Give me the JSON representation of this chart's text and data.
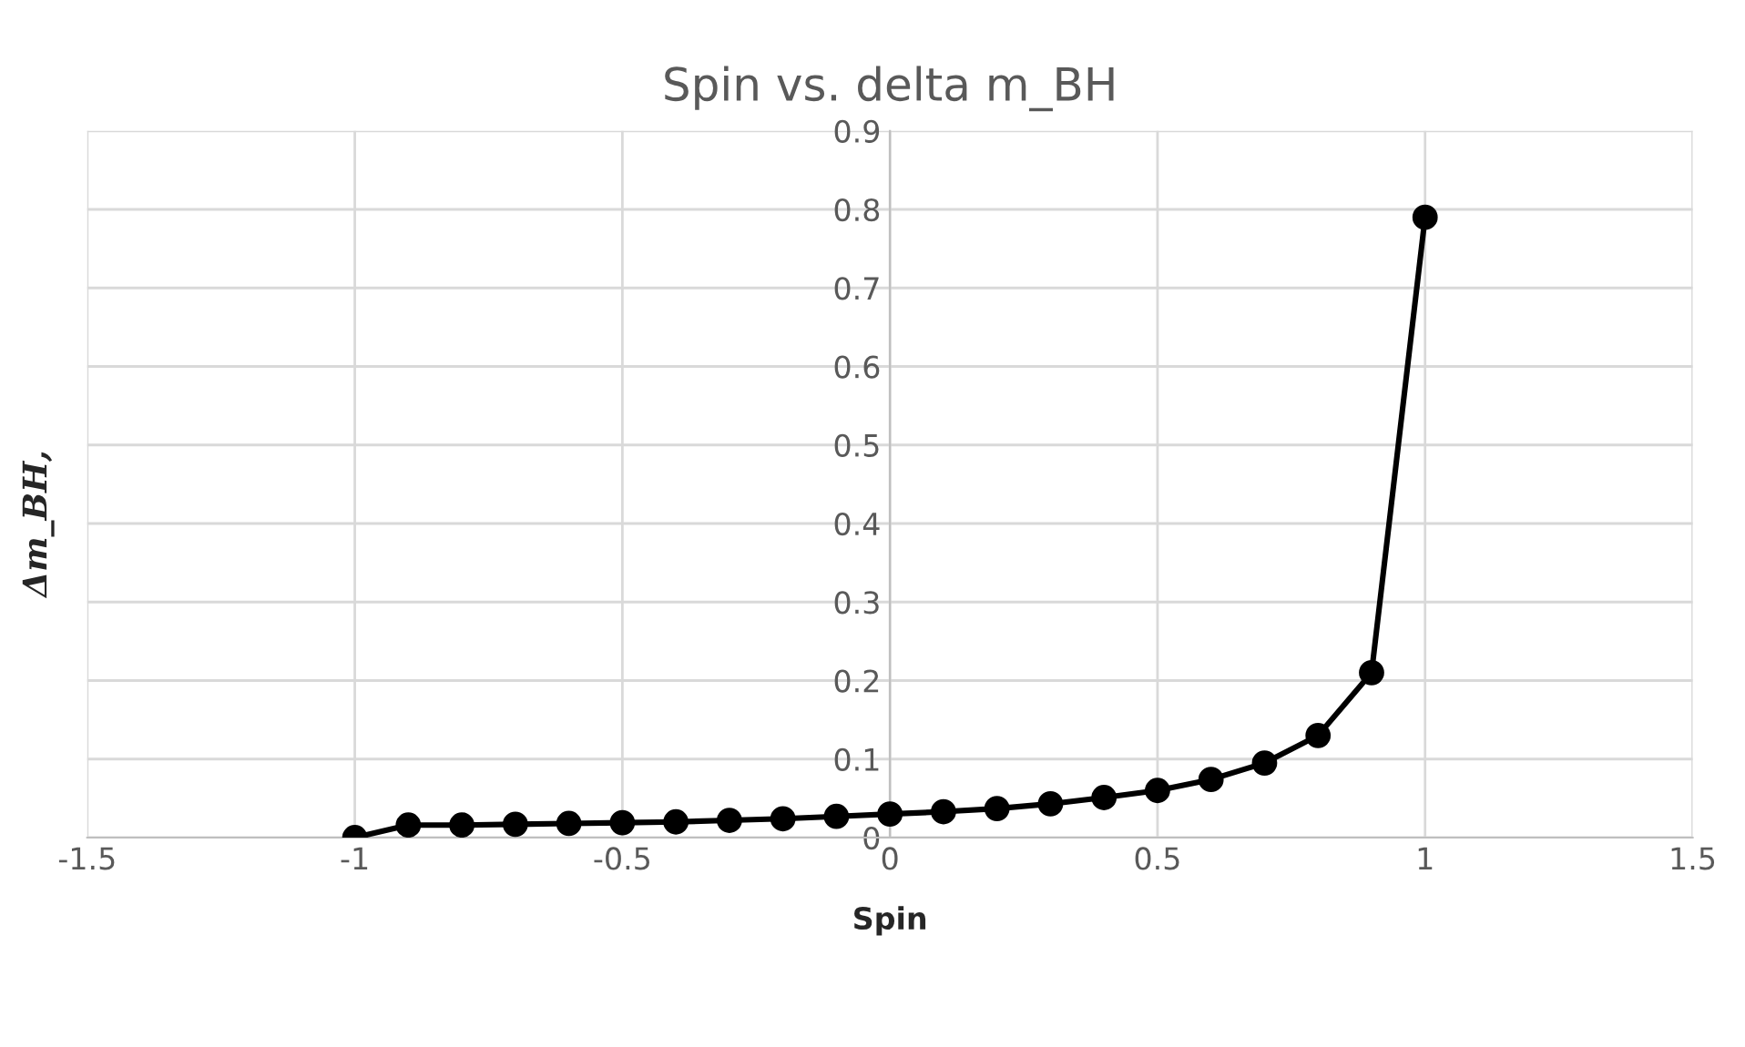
{
  "chart_data": {
    "type": "line",
    "title": "Spin vs. delta m_BH",
    "xlabel": "Spin",
    "ylabel": "Δm_BH,",
    "x": [
      -1,
      -0.9,
      -0.8,
      -0.7,
      -0.6,
      -0.5,
      -0.4,
      -0.3,
      -0.2,
      -0.1,
      0,
      0.1,
      0.2,
      0.3,
      0.4,
      0.5,
      0.6,
      0.7,
      0.8,
      0.9,
      1
    ],
    "series": [
      {
        "color": "#000000",
        "values": [
          0.0,
          0.016,
          0.016,
          0.017,
          0.018,
          0.019,
          0.02,
          0.022,
          0.024,
          0.027,
          0.03,
          0.033,
          0.037,
          0.043,
          0.051,
          0.06,
          0.074,
          0.095,
          0.13,
          0.21,
          0.79
        ]
      }
    ],
    "xlim": [
      -1.5,
      1.5
    ],
    "xticks": [
      -1.5,
      -1,
      -0.5,
      0,
      0.5,
      1,
      1.5
    ],
    "ylim": [
      0,
      0.9
    ],
    "yticks": [
      0,
      0.1,
      0.2,
      0.3,
      0.4,
      0.5,
      0.6,
      0.7,
      0.8,
      0.9
    ],
    "grid": true,
    "marker": "circle",
    "line_style": "solid",
    "legend": false
  }
}
